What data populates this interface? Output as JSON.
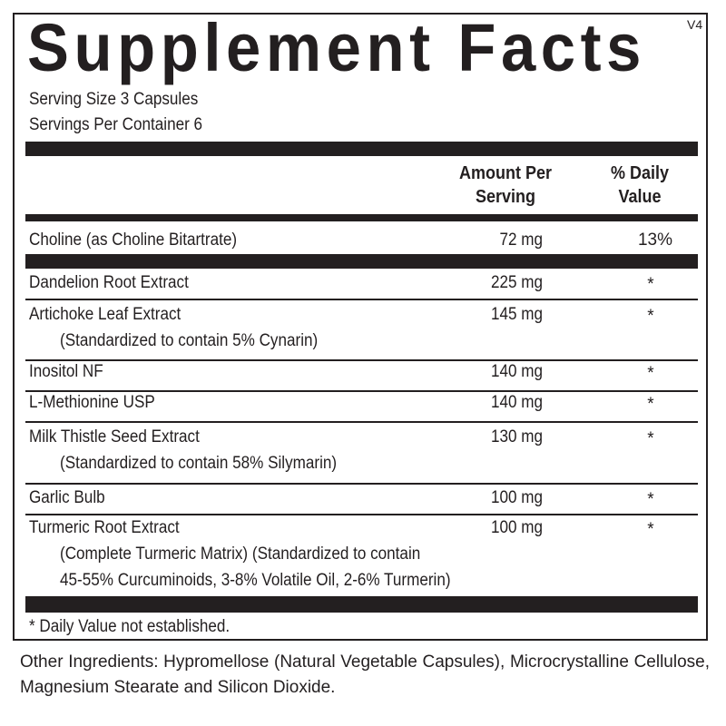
{
  "title": "Supplement Facts",
  "version": "V4",
  "serving_size": "Serving Size 3 Capsules",
  "servings_per_container": "Servings Per Container  6",
  "header": {
    "amount_line1": "Amount Per",
    "amount_line2": "Serving",
    "dv_line1": "% Daily",
    "dv_line2": "Value"
  },
  "choline": {
    "name": "Choline (as Choline Bitartrate)",
    "amount": "72 mg",
    "dv": "13%"
  },
  "ingredients": [
    {
      "name": "Dandelion Root Extract",
      "amount": "225 mg",
      "dv": "*"
    },
    {
      "name": "Artichoke Leaf Extract",
      "sub": "(Standardized to contain 5% Cynarin)",
      "amount": "145 mg",
      "dv": "*"
    },
    {
      "name": "Inositol NF",
      "amount": "140 mg",
      "dv": "*"
    },
    {
      "name": "L-Methionine USP",
      "amount": "140 mg",
      "dv": "*"
    },
    {
      "name": "Milk Thistle Seed Extract",
      "sub": "(Standardized to contain 58% Silymarin)",
      "amount": "130 mg",
      "dv": "*"
    },
    {
      "name": "Garlic Bulb",
      "amount": "100 mg",
      "dv": "*"
    },
    {
      "name": "Turmeric Root Extract",
      "sub": "(Complete Turmeric Matrix) (Standardized to contain",
      "sub2": "45-55% Curcuminoids, 3-8% Volatile Oil, 2-6% Turmerin)",
      "amount": "100 mg",
      "dv": "*"
    }
  ],
  "footnote": "* Daily Value not established.",
  "other_ingredients": "Other Ingredients: Hypromellose (Natural Vegetable Capsules), Microcrystalline Cellulose, Magnesium Stearate and Silicon Dioxide."
}
